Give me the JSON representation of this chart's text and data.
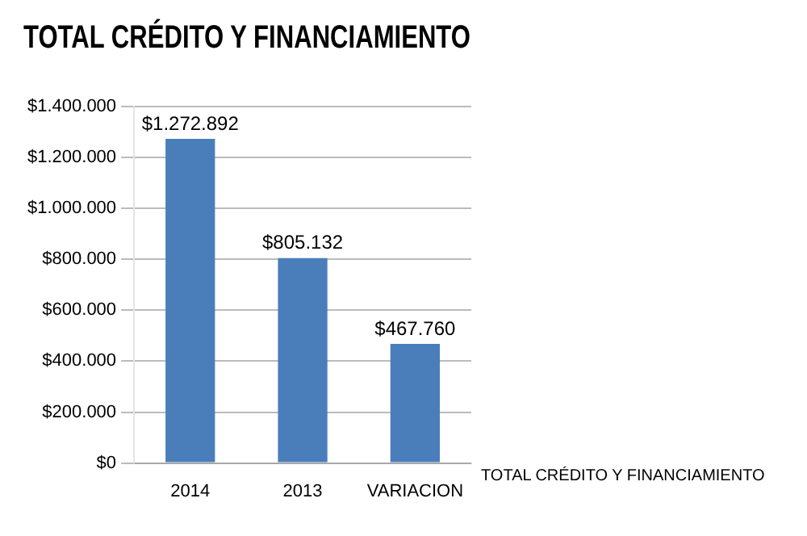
{
  "chart_data": {
    "type": "bar",
    "title": "TOTAL CRÉDITO Y FINANCIAMIENTO",
    "categories": [
      "2014",
      "2013",
      "VARIACION"
    ],
    "series": [
      {
        "color": "#4a7ebb",
        "values": [
          1272892,
          805132,
          467760
        ],
        "value_labels": [
          "$1.272.892",
          "$805.132",
          "$467.760"
        ]
      }
    ],
    "ylim": [
      0,
      1400000
    ],
    "yticks": [
      {
        "value": 0,
        "label": "$0"
      },
      {
        "value": 200000,
        "label": "$200.000"
      },
      {
        "value": 400000,
        "label": "$400.000"
      },
      {
        "value": 600000,
        "label": "$600.000"
      },
      {
        "value": 800000,
        "label": "$800.000"
      },
      {
        "value": 1000000,
        "label": "$1.000.000"
      },
      {
        "value": 1200000,
        "label": "$1.200.000"
      },
      {
        "value": 1400000,
        "label": "$1.400.000"
      }
    ],
    "grid": "y",
    "annotations": [
      "TOTAL CRÉDITO Y FINANCIAMIENTO"
    ]
  }
}
